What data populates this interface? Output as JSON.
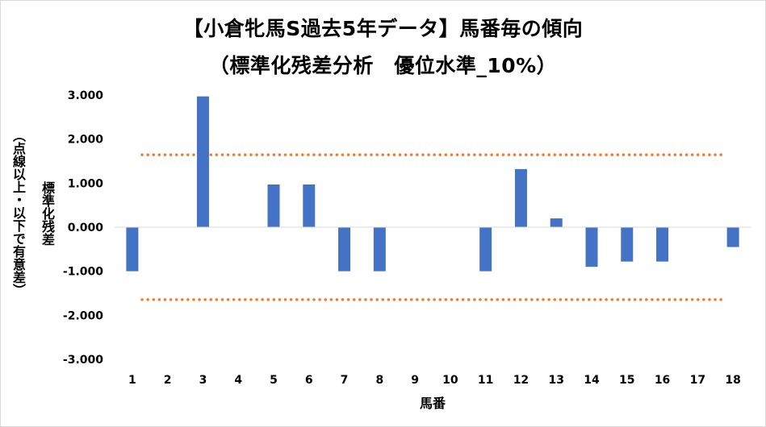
{
  "chart_data": {
    "type": "bar",
    "title": "【小倉牝馬S過去5年データ】馬番毎の傾向",
    "subtitle": "（標準化残差分析　優位水準_10%）",
    "xlabel": "馬番",
    "ylabel": "標準化残差",
    "ylabel_note": "（点線以上・以下で有意差）",
    "categories": [
      "1",
      "2",
      "3",
      "4",
      "5",
      "6",
      "7",
      "8",
      "9",
      "10",
      "11",
      "12",
      "13",
      "14",
      "15",
      "16",
      "17",
      "18"
    ],
    "values": [
      -1.0,
      0,
      2.97,
      0,
      0.97,
      0.97,
      -1.0,
      -1.0,
      0,
      0,
      -1.0,
      1.32,
      0.2,
      -0.9,
      -0.78,
      -0.78,
      0,
      -0.45
    ],
    "ylim": [
      -3,
      3
    ],
    "yticks": [
      "3.000",
      "2.000",
      "1.000",
      "0.000",
      "-1.000",
      "-2.000",
      "-3.000"
    ],
    "threshold_upper": 1.645,
    "threshold_lower": -1.645,
    "grid": false,
    "bar_color": "#4472c4",
    "threshold_color": "#ed7d31"
  }
}
